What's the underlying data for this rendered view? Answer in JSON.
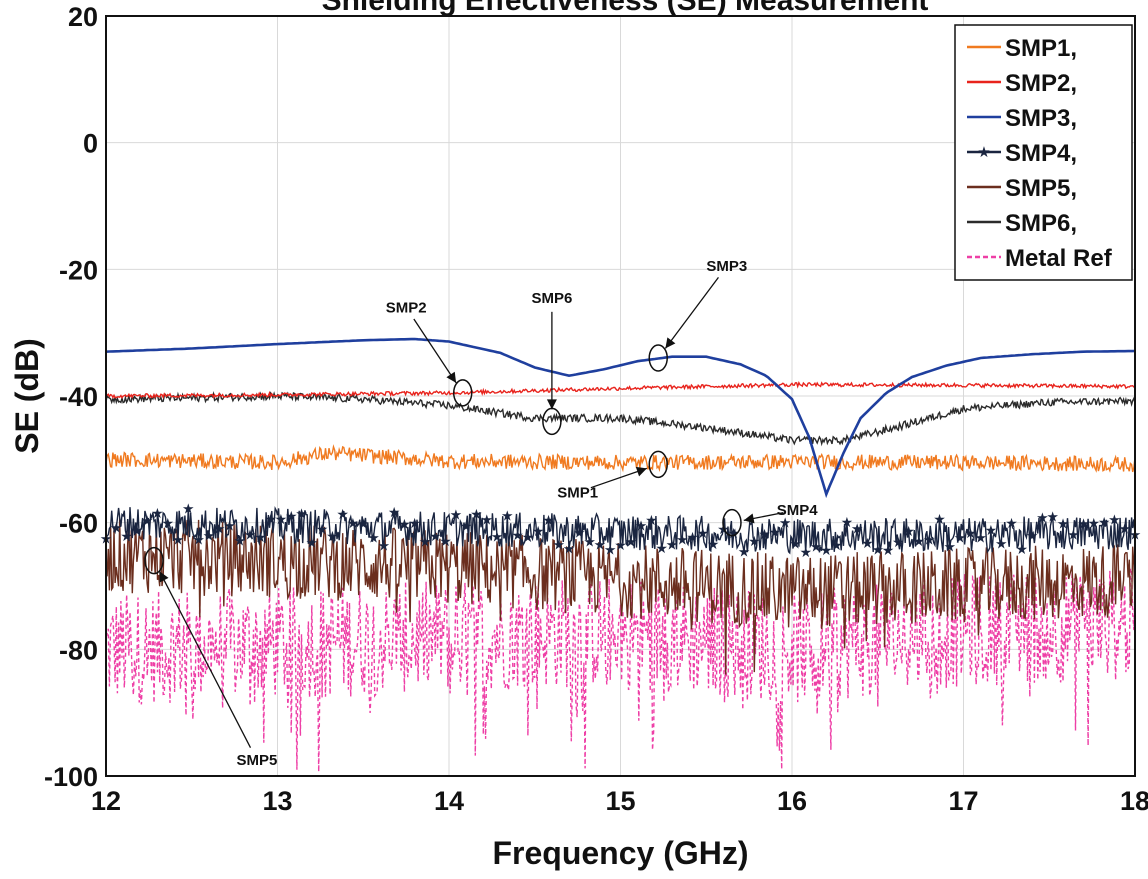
{
  "chart_data": {
    "type": "line",
    "title": "Shielding Effectiveness (SE) Measurement",
    "xlabel": "Frequency (GHz)",
    "ylabel": "SE (dB)",
    "xlim": [
      12,
      18
    ],
    "ylim": [
      -100,
      20
    ],
    "xticks": [
      12,
      13,
      14,
      15,
      16,
      17,
      18
    ],
    "yticks": [
      20,
      0,
      -20,
      -40,
      -60,
      -80,
      -100
    ],
    "grid": true,
    "legend_position": "top-right",
    "series": [
      {
        "name": "SMP1,",
        "color": "#f07a20",
        "style": "solid",
        "x": [
          12,
          13,
          13.3,
          14,
          15,
          16,
          17,
          18
        ],
        "y": [
          -50,
          -50.5,
          -49,
          -50.3,
          -50.5,
          -50.4,
          -50.5,
          -50.8
        ],
        "noise": 1.2
      },
      {
        "name": "SMP2,",
        "color": "#e8231c",
        "style": "solid",
        "x": [
          12,
          13,
          14,
          15,
          16,
          17,
          18
        ],
        "y": [
          -40,
          -39.8,
          -39.5,
          -38.8,
          -38.2,
          -38.3,
          -38.5
        ],
        "noise": 0.3
      },
      {
        "name": "SMP3,",
        "color": "#1f3f9e",
        "style": "solid",
        "x": [
          12,
          12.5,
          13,
          13.5,
          13.8,
          14.0,
          14.3,
          14.5,
          14.7,
          14.9,
          15.1,
          15.3,
          15.5,
          15.7,
          15.85,
          16.0,
          16.1,
          16.2,
          16.3,
          16.4,
          16.55,
          16.7,
          16.9,
          17.1,
          17.4,
          17.7,
          18
        ],
        "y": [
          -33,
          -32.5,
          -31.8,
          -31.2,
          -31.0,
          -31.4,
          -33.2,
          -35.5,
          -36.8,
          -35.8,
          -34.5,
          -33.8,
          -33.8,
          -35.0,
          -36.8,
          -40.5,
          -46.5,
          -55.5,
          -49,
          -43.5,
          -39.5,
          -37,
          -35.2,
          -34.0,
          -33.4,
          -33.0,
          -32.9
        ],
        "noise": 0
      },
      {
        "name": "SMP4,",
        "color": "#1a2540",
        "style": "solid-star",
        "x": [
          12,
          13,
          14,
          15,
          16,
          17,
          18
        ],
        "y": [
          -60,
          -60.5,
          -61,
          -61.5,
          -62,
          -62,
          -61.5
        ],
        "noise": 2.8
      },
      {
        "name": "SMP5,",
        "color": "#6b2e1e",
        "style": "solid",
        "x": [
          12,
          13,
          14,
          15,
          16,
          17,
          18
        ],
        "y": [
          -65,
          -66,
          -67,
          -69,
          -71,
          -70,
          -69
        ],
        "noise": 6
      },
      {
        "name": "SMP6,",
        "color": "#2b2b2b",
        "style": "solid",
        "x": [
          12,
          12.5,
          13,
          13.5,
          14,
          14.5,
          15,
          15.5,
          16,
          16.3,
          16.6,
          17,
          17.5,
          18
        ],
        "y": [
          -40.5,
          -40.3,
          -40,
          -40.5,
          -41.5,
          -43.5,
          -43.5,
          -45,
          -47,
          -47,
          -45,
          -42,
          -41,
          -40.8
        ],
        "noise": 0.6
      },
      {
        "name": "Metal Ref",
        "color": "#ee3fa6",
        "style": "dashed",
        "x": [
          12,
          13,
          14,
          15,
          16,
          17,
          18
        ],
        "y": [
          -80,
          -79,
          -78,
          -77,
          -80,
          -77,
          -76
        ],
        "noise": 9
      }
    ],
    "annotations": [
      {
        "text": "SMP2",
        "point": [
          14.08,
          -39.5
        ],
        "label_at": [
          13.75,
          -26
        ]
      },
      {
        "text": "SMP6",
        "point": [
          14.6,
          -44
        ],
        "label_at": [
          14.6,
          -24.5
        ]
      },
      {
        "text": "SMP3",
        "point": [
          15.22,
          -34
        ],
        "label_at": [
          15.62,
          -19.5
        ]
      },
      {
        "text": "SMP1",
        "point": [
          15.22,
          -50.8
        ],
        "label_at": [
          14.75,
          -55.2
        ]
      },
      {
        "text": "SMP4",
        "point": [
          15.65,
          -60
        ],
        "label_at": [
          16.03,
          -58
        ]
      },
      {
        "text": "SMP5",
        "point": [
          12.28,
          -66
        ],
        "label_at": [
          12.88,
          -97.5
        ]
      }
    ]
  }
}
